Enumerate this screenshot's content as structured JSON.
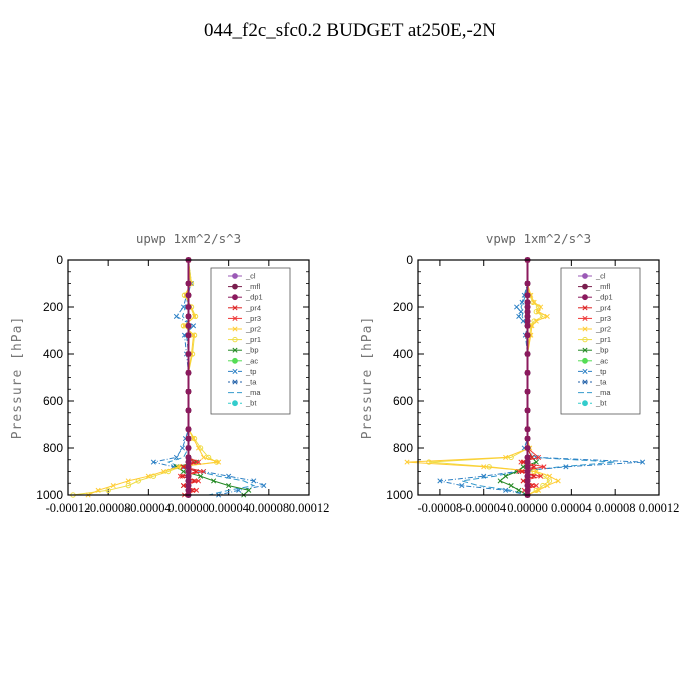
{
  "title": "044_f2c_sfc0.2  BUDGET at250E,-2N",
  "legend_entries": [
    "_cl",
    "_mfl",
    "_dp1",
    "_pr4",
    "_pr3",
    "_pr2",
    "_pr1",
    "_bp",
    "_ac",
    "_tp",
    "_ta",
    "_ma",
    "_bt"
  ],
  "colors": {
    "_cl": "#9b59b6",
    "_mfl": "#7a1f4e",
    "_dp1": "#8b1a5e",
    "_pr4": "#dd2222",
    "_pr3": "#ee3333",
    "_pr2": "#ffcc33",
    "_pr1": "#eedd44",
    "_bp": "#228822",
    "_ac": "#55dd55",
    "_tp": "#2a7fc4",
    "_ta": "#1f5fa8",
    "_ma": "#3399cc",
    "_bt": "#33cccc"
  },
  "chart_data": [
    {
      "type": "line",
      "title": "upwp   1xm^2/s^3",
      "ylabel": "Pressure [hPa]",
      "xlim": [
        -0.00012,
        0.00012
      ],
      "ylim": [
        1000,
        0
      ],
      "yticks": [
        0,
        200,
        400,
        600,
        800,
        1000
      ],
      "xtick_labels": [
        "-0.00012",
        "-0.00008",
        "-0.00004",
        "0.00000",
        "0.00004",
        "0.00008",
        "0.00012"
      ],
      "xtick_values": [
        -0.00012,
        -8e-05,
        -4e-05,
        0,
        4e-05,
        8e-05,
        0.00012
      ],
      "p": [
        0,
        100,
        150,
        200,
        240,
        280,
        320,
        400,
        480,
        560,
        640,
        720,
        760,
        800,
        840,
        860,
        880,
        900,
        920,
        940,
        960,
        980,
        1000
      ],
      "series": [
        {
          "name": "_cl",
          "values": [
            0,
            0,
            0,
            0,
            0,
            0,
            0,
            0,
            0,
            0,
            0,
            0,
            0,
            0,
            0,
            0,
            0,
            0,
            0,
            0,
            0,
            0,
            0
          ]
        },
        {
          "name": "_mfl",
          "values": [
            0,
            0,
            0,
            0,
            0,
            0,
            0,
            0,
            0,
            0,
            0,
            0,
            0,
            0,
            0,
            0,
            0,
            0,
            0,
            0,
            0,
            0,
            0
          ]
        },
        {
          "name": "_dp1",
          "values": [
            0,
            0,
            0,
            0,
            0,
            0,
            0,
            0,
            0,
            0,
            0,
            0,
            0,
            0,
            0,
            0,
            0,
            0,
            0,
            0,
            0,
            0,
            0
          ]
        },
        {
          "name": "_pr4",
          "values": [
            0,
            0,
            0,
            0,
            0,
            0,
            0,
            0,
            0,
            0,
            0,
            0,
            0,
            0,
            0,
            5e-06,
            -5e-06,
            8e-06,
            -6e-06,
            6e-06,
            -5e-06,
            4e-06,
            0
          ]
        },
        {
          "name": "_pr3",
          "values": [
            0,
            0,
            0,
            0,
            0,
            0,
            0,
            0,
            0,
            0,
            0,
            0,
            0,
            0,
            0,
            1e-05,
            -5e-06,
            1.5e-05,
            -8e-06,
            1e-05,
            -5e-06,
            8e-06,
            -4e-06
          ]
        },
        {
          "name": "_pr2",
          "values": [
            0,
            2e-06,
            -3e-06,
            2e-06,
            6e-06,
            -4e-06,
            5e-06,
            3e-06,
            0,
            0,
            0,
            0,
            5e-06,
            1e-05,
            1.5e-05,
            3e-05,
            -1e-05,
            -2.5e-05,
            -4e-05,
            -6e-05,
            -7.5e-05,
            -9e-05,
            -0.0001
          ]
        },
        {
          "name": "_pr1",
          "values": [
            0,
            3e-06,
            -4e-06,
            3e-06,
            7e-06,
            -5e-06,
            6e-06,
            4e-06,
            0,
            0,
            0,
            0,
            6e-06,
            1.2e-05,
            2e-05,
            2.8e-05,
            -8e-06,
            -2e-05,
            -3.5e-05,
            -5e-05,
            -6e-05,
            -8e-05,
            -0.000115
          ]
        },
        {
          "name": "_bp",
          "values": [
            0,
            0,
            0,
            0,
            0,
            0,
            0,
            0,
            0,
            0,
            0,
            0,
            0,
            0,
            0,
            8e-06,
            -1.2e-05,
            -5e-06,
            1.2e-05,
            2.5e-05,
            4e-05,
            6e-05,
            5.5e-05
          ]
        },
        {
          "name": "_ac",
          "values": [
            0,
            0,
            0,
            0,
            0,
            0,
            0,
            0,
            0,
            0,
            0,
            0,
            0,
            0,
            0,
            0,
            0,
            0,
            0,
            0,
            0,
            0,
            0
          ]
        },
        {
          "name": "_tp",
          "values": [
            0,
            3e-06,
            -2e-06,
            -5e-06,
            -1.2e-05,
            5e-06,
            -4e-06,
            -2e-06,
            0,
            0,
            0,
            0,
            -3e-06,
            -6e-06,
            -1.2e-05,
            -3.5e-05,
            -1.5e-05,
            1.5e-05,
            4e-05,
            6.5e-05,
            7.5e-05,
            5e-05,
            3e-05
          ]
        },
        {
          "name": "_ta",
          "values": [
            0,
            0,
            0,
            0,
            0,
            0,
            0,
            0,
            0,
            0,
            0,
            0,
            0,
            0,
            0,
            0,
            0,
            0,
            0,
            0,
            0,
            0,
            0
          ]
        },
        {
          "name": "_ma",
          "values": [
            0,
            2e-06,
            0,
            -3e-06,
            -6e-06,
            3e-06,
            -2e-06,
            0,
            0,
            0,
            0,
            0,
            0,
            0,
            -5e-06,
            -2e-05,
            -8e-06,
            1e-05,
            3e-05,
            5.5e-05,
            6.5e-05,
            4e-05,
            2e-05
          ]
        },
        {
          "name": "_bt",
          "values": [
            0,
            0,
            0,
            0,
            0,
            0,
            0,
            0,
            0,
            0,
            0,
            0,
            0,
            0,
            0,
            0,
            0,
            0,
            0,
            0,
            0,
            0,
            0
          ]
        }
      ]
    },
    {
      "type": "line",
      "title": "vpwp   1xm^2/s^3",
      "ylabel": "Pressure [hPa]",
      "xlim": [
        -0.0001,
        0.00012
      ],
      "ylim": [
        1000,
        0
      ],
      "yticks": [
        0,
        200,
        400,
        600,
        800,
        1000
      ],
      "xtick_labels": [
        "-0.00008",
        "-0.00004",
        "0.00000",
        "0.00004",
        "0.00008",
        "0.00012"
      ],
      "xtick_values": [
        -8e-05,
        -4e-05,
        0,
        4e-05,
        8e-05,
        0.00012
      ],
      "p": [
        0,
        100,
        150,
        180,
        200,
        220,
        240,
        260,
        280,
        320,
        400,
        480,
        560,
        640,
        720,
        760,
        800,
        840,
        860,
        880,
        900,
        920,
        940,
        960,
        980,
        1000
      ],
      "series": [
        {
          "name": "_cl",
          "values": [
            0,
            0,
            0,
            0,
            0,
            0,
            0,
            0,
            0,
            0,
            0,
            0,
            0,
            0,
            0,
            0,
            0,
            0,
            0,
            0,
            0,
            0,
            0,
            0,
            0,
            0
          ]
        },
        {
          "name": "_mfl",
          "values": [
            0,
            0,
            0,
            0,
            0,
            0,
            0,
            0,
            0,
            0,
            0,
            0,
            0,
            0,
            0,
            0,
            0,
            0,
            0,
            0,
            0,
            0,
            0,
            0,
            0,
            0
          ]
        },
        {
          "name": "_dp1",
          "values": [
            0,
            0,
            0,
            0,
            0,
            0,
            0,
            0,
            0,
            0,
            0,
            0,
            0,
            0,
            0,
            0,
            0,
            0,
            0,
            0,
            0,
            0,
            0,
            0,
            0,
            0
          ]
        },
        {
          "name": "_pr4",
          "values": [
            0,
            0,
            0,
            0,
            0,
            0,
            0,
            0,
            0,
            0,
            0,
            0,
            0,
            0,
            0,
            0,
            0,
            4e-06,
            -4e-06,
            6e-06,
            -5e-06,
            6e-06,
            -4e-06,
            4e-06,
            0,
            0
          ]
        },
        {
          "name": "_pr3",
          "values": [
            0,
            0,
            0,
            0,
            0,
            0,
            0,
            0,
            0,
            0,
            0,
            0,
            0,
            0,
            0,
            0,
            0,
            1e-05,
            -6e-06,
            1.5e-05,
            -8e-06,
            1.2e-05,
            -4e-06,
            8e-06,
            -3e-06,
            0
          ]
        },
        {
          "name": "_pr2",
          "values": [
            0,
            0,
            3e-06,
            6e-06,
            1.2e-05,
            1e-05,
            1.8e-05,
            8e-06,
            4e-06,
            3e-06,
            0,
            0,
            0,
            0,
            0,
            0,
            2e-06,
            -2e-05,
            -0.00011,
            -4e-05,
            8e-06,
            2e-05,
            2.8e-05,
            1.8e-05,
            1e-05,
            0
          ]
        },
        {
          "name": "_pr1",
          "values": [
            0,
            0,
            2e-06,
            5e-06,
            1e-05,
            8e-06,
            1.4e-05,
            6e-06,
            3e-06,
            2e-06,
            0,
            0,
            0,
            0,
            0,
            0,
            1e-06,
            -1.5e-05,
            -9e-05,
            -3.5e-05,
            6e-06,
            1.5e-05,
            2e-05,
            1.4e-05,
            8e-06,
            0
          ]
        },
        {
          "name": "_bp",
          "values": [
            0,
            0,
            0,
            0,
            0,
            0,
            0,
            0,
            0,
            0,
            0,
            0,
            0,
            0,
            0,
            0,
            0,
            4e-06,
            8e-06,
            -4e-06,
            -1e-05,
            -2e-05,
            -2.5e-05,
            -1.5e-05,
            -8e-06,
            0
          ]
        },
        {
          "name": "_ac",
          "values": [
            0,
            0,
            0,
            0,
            0,
            0,
            0,
            0,
            0,
            0,
            0,
            0,
            0,
            0,
            0,
            0,
            0,
            0,
            0,
            0,
            0,
            0,
            0,
            0,
            0,
            0
          ]
        },
        {
          "name": "_tp",
          "values": [
            0,
            0,
            -3e-06,
            -5e-06,
            -1e-05,
            -6e-06,
            -8e-06,
            -4e-06,
            0,
            -2e-06,
            0,
            0,
            0,
            0,
            0,
            0,
            -3e-06,
            8e-06,
            0.000105,
            3.5e-05,
            -1e-05,
            -4e-05,
            -8e-05,
            -6e-05,
            -2e-05,
            0
          ]
        },
        {
          "name": "_ta",
          "values": [
            0,
            0,
            0,
            0,
            0,
            0,
            0,
            0,
            0,
            0,
            0,
            0,
            0,
            0,
            0,
            0,
            0,
            0,
            0,
            0,
            0,
            0,
            0,
            0,
            0,
            0
          ]
        },
        {
          "name": "_ma",
          "values": [
            0,
            0,
            -2e-06,
            -4e-06,
            -6e-06,
            -4e-06,
            -5e-06,
            -3e-06,
            0,
            -1e-06,
            0,
            0,
            0,
            0,
            0,
            0,
            -2e-06,
            5e-06,
            8e-05,
            3e-05,
            -8e-06,
            -3e-05,
            -6e-05,
            -4.5e-05,
            -1.5e-05,
            0
          ]
        },
        {
          "name": "_bt",
          "values": [
            0,
            0,
            0,
            0,
            0,
            0,
            0,
            0,
            0,
            0,
            0,
            0,
            0,
            0,
            0,
            0,
            0,
            0,
            0,
            0,
            0,
            0,
            0,
            0,
            0,
            0
          ]
        }
      ]
    }
  ]
}
